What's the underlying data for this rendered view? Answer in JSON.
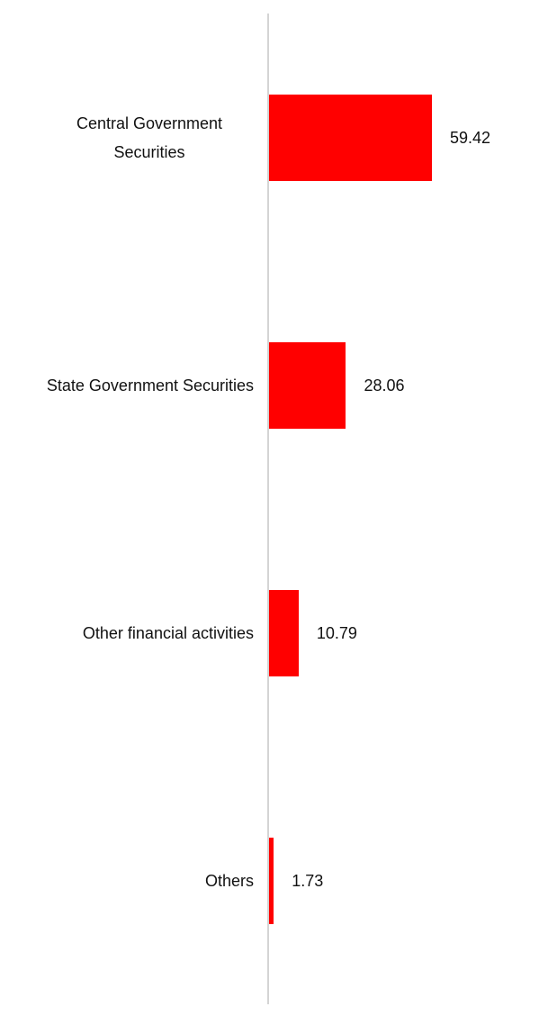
{
  "chart_data": {
    "type": "bar",
    "orientation": "horizontal",
    "categories": [
      "Central Government Securities",
      "State Government Securities",
      "Other financial activities",
      "Others"
    ],
    "values": [
      59.42,
      28.06,
      10.79,
      1.73
    ],
    "color": "#ff0000"
  }
}
